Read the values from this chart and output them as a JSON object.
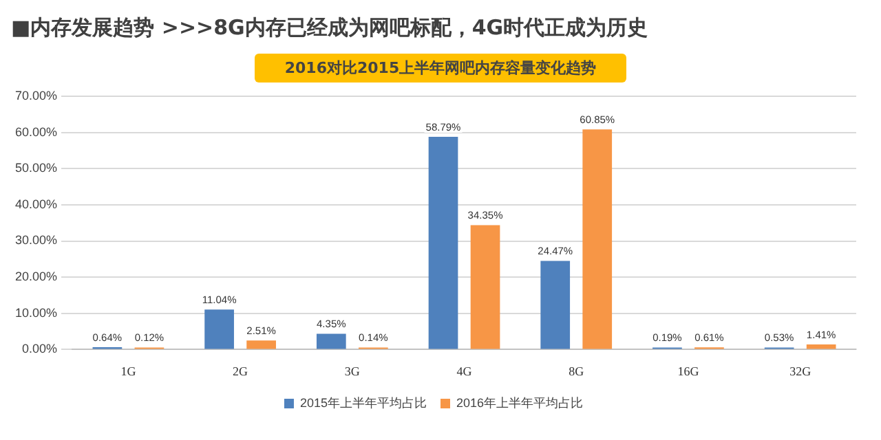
{
  "chart_data": {
    "type": "bar",
    "title": "■内存发展趋势  >>>8G内存已经成为网吧标配，4G时代正成为历史",
    "subtitle": "2016对比2015上半年网吧内存容量变化趋势",
    "categories": [
      "1G",
      "2G",
      "3G",
      "4G",
      "8G",
      "16G",
      "32G"
    ],
    "series": [
      {
        "name": "2015年上半年平均占比",
        "color": "#4f81bd",
        "values": [
          0.64,
          11.04,
          4.35,
          58.79,
          24.47,
          0.19,
          0.53
        ],
        "value_labels": [
          "0.64%",
          "11.04%",
          "4.35%",
          "58.79%",
          "24.47%",
          "0.19%",
          "0.53%"
        ]
      },
      {
        "name": "2016年上半年平均占比",
        "color": "#f79646",
        "values": [
          0.12,
          2.51,
          0.14,
          34.35,
          60.85,
          0.61,
          1.41
        ],
        "value_labels": [
          "0.12%",
          "2.51%",
          "0.14%",
          "34.35%",
          "60.85%",
          "0.61%",
          "1.41%"
        ]
      }
    ],
    "ylim": [
      0,
      70
    ],
    "yticks": [
      {
        "value": 0,
        "label": "0.00%"
      },
      {
        "value": 10,
        "label": "10.00%"
      },
      {
        "value": 20,
        "label": "20.00%"
      },
      {
        "value": 30,
        "label": "30.00%"
      },
      {
        "value": 40,
        "label": "40.00%"
      },
      {
        "value": 50,
        "label": "50.00%"
      },
      {
        "value": 60,
        "label": "60.00%"
      },
      {
        "value": 70,
        "label": "70.00%"
      }
    ],
    "grid": "y",
    "legend": "bottom"
  }
}
